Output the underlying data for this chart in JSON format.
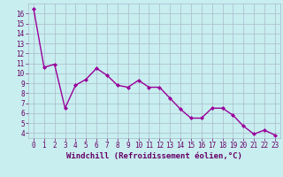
{
  "x": [
    0,
    1,
    2,
    3,
    4,
    5,
    6,
    7,
    8,
    9,
    10,
    11,
    12,
    13,
    14,
    15,
    16,
    17,
    18,
    19,
    20,
    21,
    22,
    23
  ],
  "y": [
    16.5,
    10.6,
    10.9,
    6.5,
    8.8,
    9.4,
    10.5,
    9.8,
    8.8,
    8.6,
    9.3,
    8.6,
    8.6,
    7.5,
    6.4,
    5.5,
    5.5,
    6.5,
    6.5,
    5.8,
    4.7,
    3.9,
    4.3,
    3.8
  ],
  "line_color": "#990099",
  "marker": "D",
  "marker_size": 2,
  "bg_color": "#c8eef0",
  "grid_color": "#aabbcc",
  "xlabel": "Windchill (Refroidissement éolien,°C)",
  "ylim": [
    3.5,
    17.0
  ],
  "xlim": [
    -0.5,
    23.5
  ],
  "yticks": [
    4,
    5,
    6,
    7,
    8,
    9,
    10,
    11,
    12,
    13,
    14,
    15,
    16
  ],
  "xticks": [
    0,
    1,
    2,
    3,
    4,
    5,
    6,
    7,
    8,
    9,
    10,
    11,
    12,
    13,
    14,
    15,
    16,
    17,
    18,
    19,
    20,
    21,
    22,
    23
  ],
  "xlabel_color": "#660066",
  "tick_color": "#660066",
  "line_width": 1.0,
  "tick_fontsize": 5.5,
  "xlabel_fontsize": 6.5
}
